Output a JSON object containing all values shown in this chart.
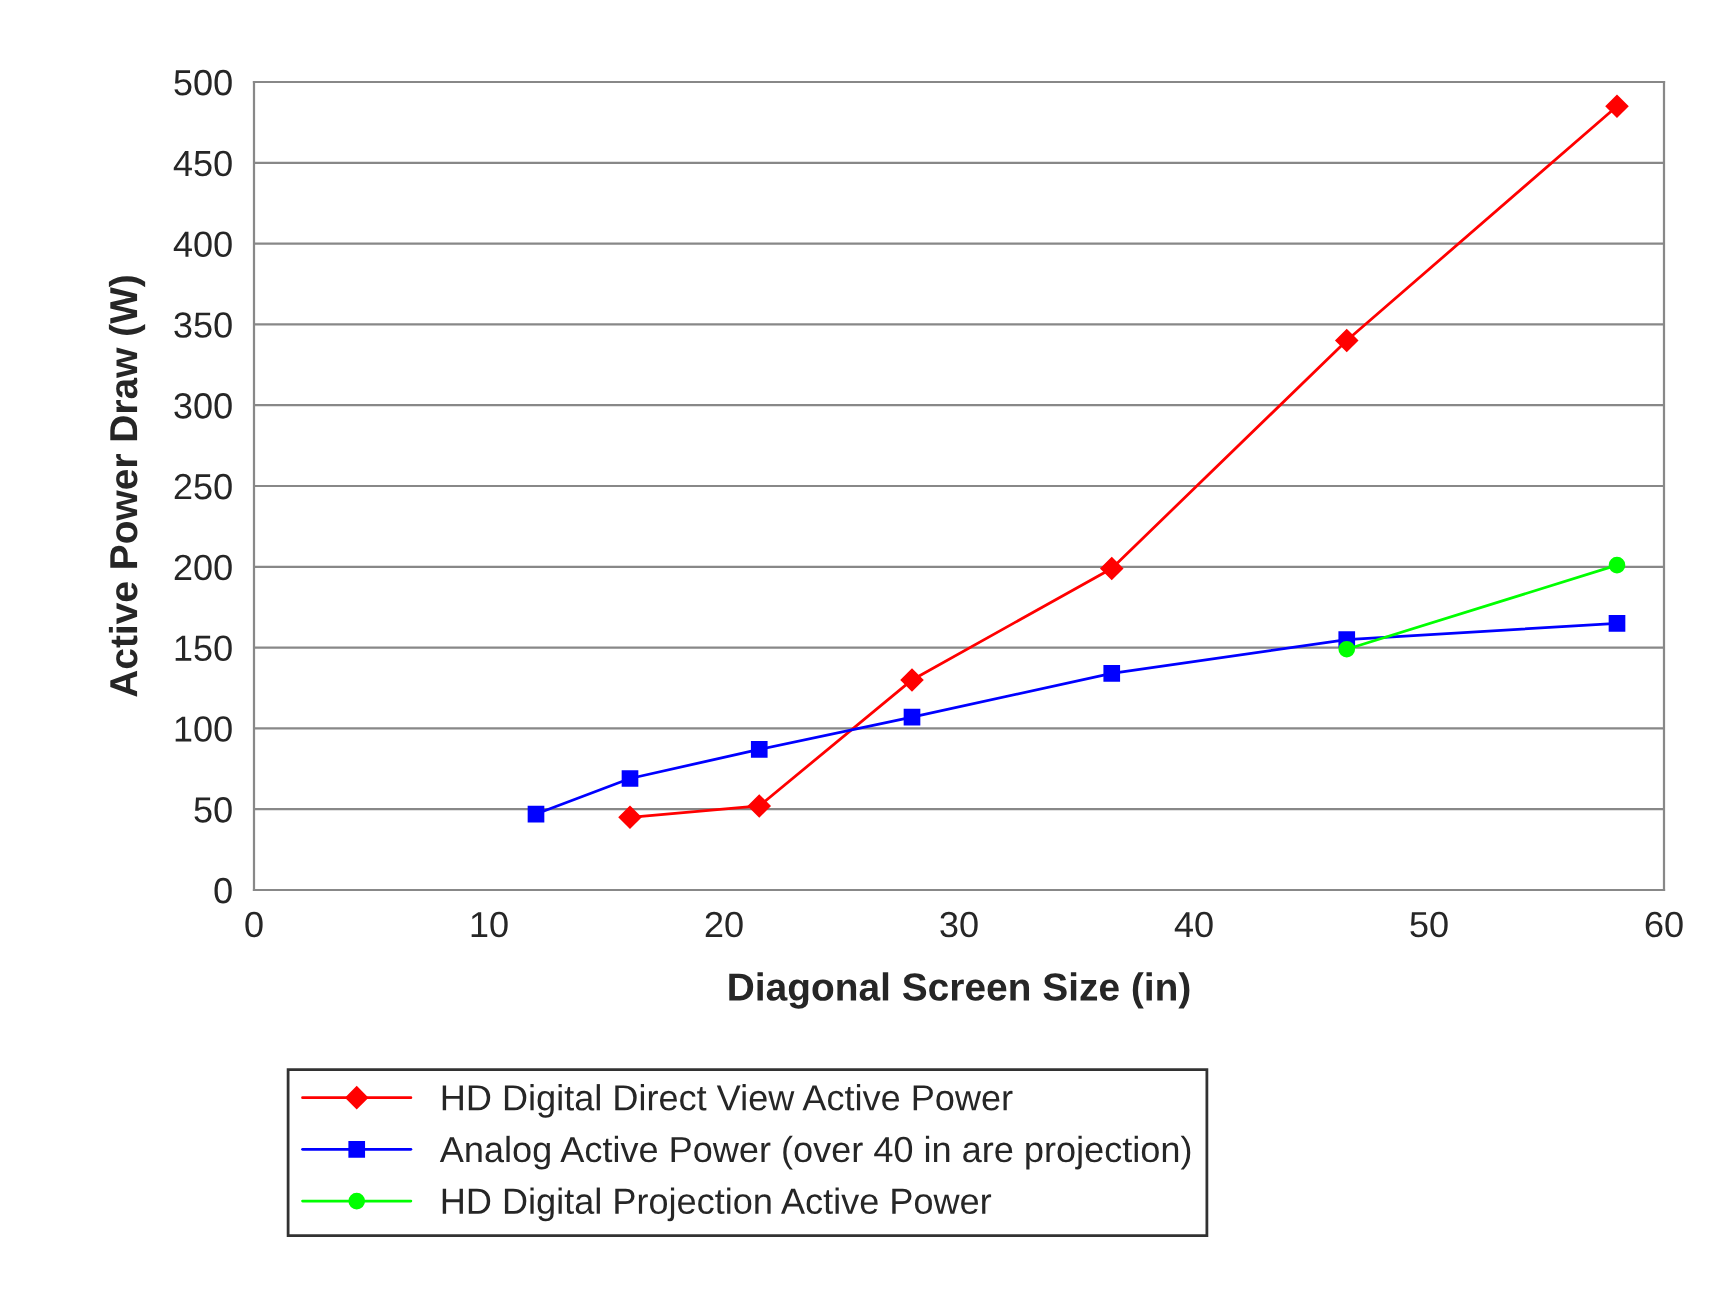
{
  "chart_data": {
    "type": "line",
    "xlabel": "Diagonal Screen Size (in)",
    "ylabel": "Active Power Draw (W)",
    "xlim": [
      0,
      60
    ],
    "xticks": [
      0,
      10,
      20,
      30,
      40,
      50,
      60
    ],
    "ylim": [
      0,
      500
    ],
    "yticks": [
      0,
      50,
      100,
      150,
      200,
      250,
      300,
      350,
      400,
      450,
      500
    ],
    "grid": "y",
    "legend": "bottom",
    "line_style": "solid",
    "series": [
      {
        "name": "HD Digital Direct View Active Power",
        "color": "#ff0000",
        "marker": "diamond",
        "x": [
          16,
          21.5,
          28,
          36.5,
          46.5,
          58
        ],
        "values": [
          45,
          52,
          130,
          199,
          340,
          485
        ]
      },
      {
        "name": "Analog Active Power (over 40 in are projection)",
        "color": "#0000ff",
        "marker": "square",
        "x": [
          12,
          16,
          21.5,
          28,
          36.5,
          46.5,
          58
        ],
        "values": [
          47,
          69,
          87,
          107,
          134,
          155,
          165
        ]
      },
      {
        "name": "HD Digital Projection Active Power",
        "color": "#00ff00",
        "marker": "circle",
        "x": [
          46.5,
          58
        ],
        "values": [
          149,
          201
        ]
      }
    ]
  }
}
